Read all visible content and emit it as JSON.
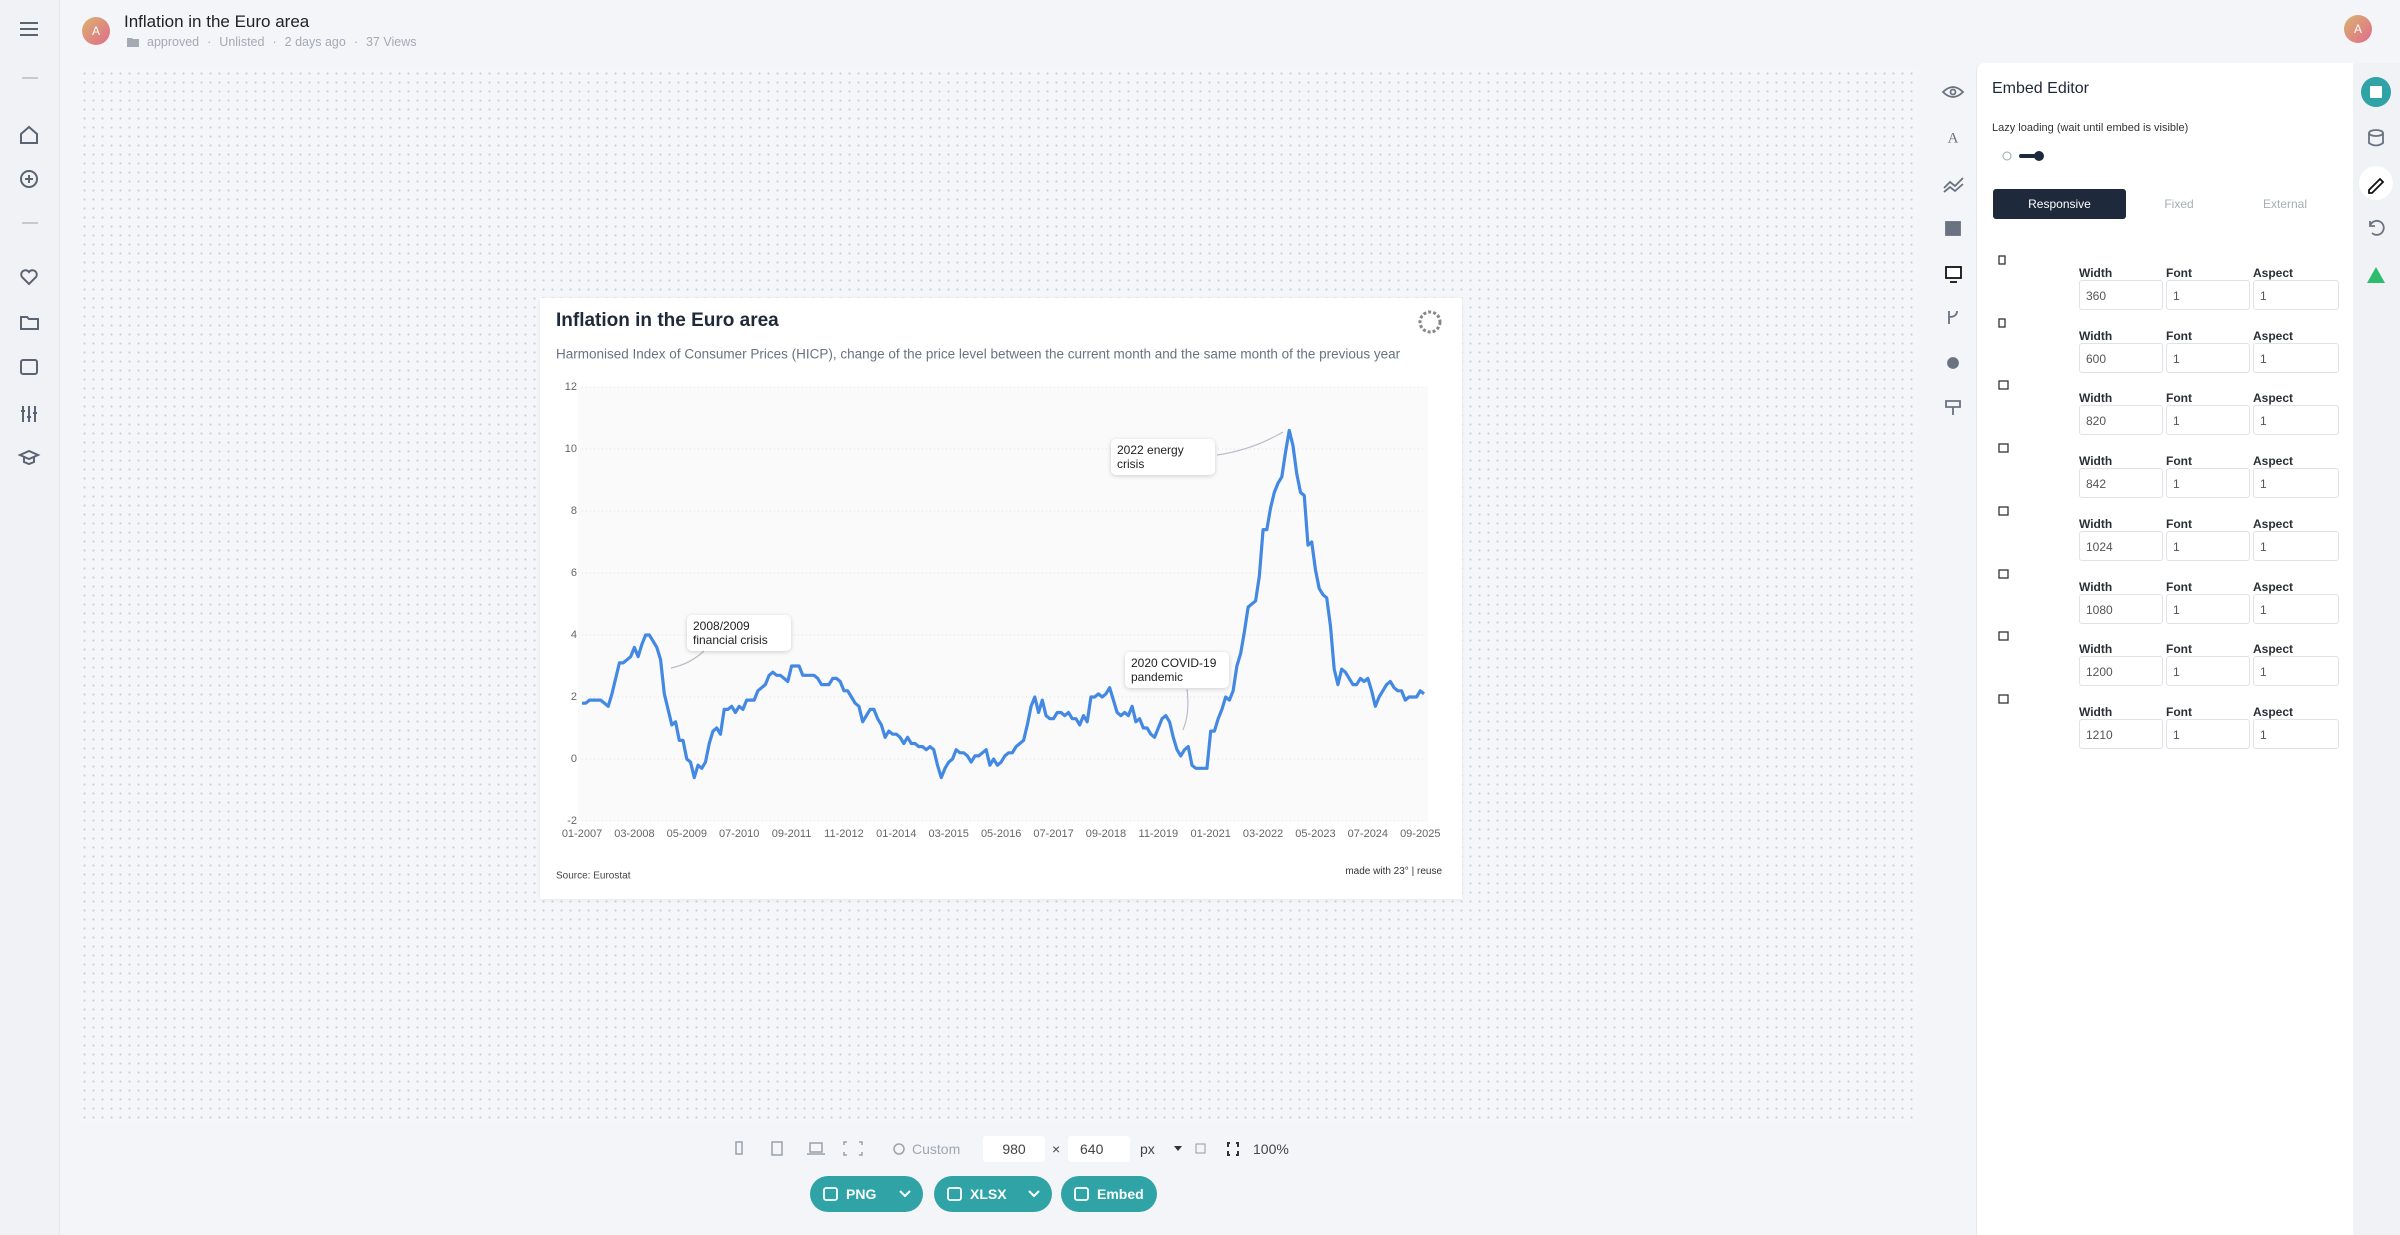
{
  "header": {
    "title": "Inflation in the Euro area",
    "status": "approved",
    "visibility": "Unlisted",
    "age": "2 days ago",
    "views": "37 Views",
    "avatar": "A"
  },
  "chart_data": {
    "type": "line",
    "title": "Inflation in the Euro area",
    "subtitle": "Harmonised Index of Consumer Prices (HICP), change of the price level between the current month and the same month of the previous year",
    "categories": [
      "01-2007",
      "02-2007",
      "03-2007",
      "04-2007",
      "05-2007",
      "06-2007",
      "07-2007",
      "08-2007",
      "09-2007",
      "10-2007",
      "11-2007",
      "12-2007",
      "01-2008",
      "02-2008",
      "03-2008",
      "04-2008",
      "05-2008",
      "06-2008",
      "07-2008",
      "08-2008",
      "09-2008",
      "10-2008",
      "11-2008",
      "12-2008",
      "01-2009",
      "02-2009",
      "03-2009",
      "04-2009",
      "05-2009",
      "06-2009",
      "07-2009",
      "08-2009",
      "09-2009",
      "10-2009",
      "11-2009",
      "12-2009",
      "01-2010",
      "02-2010",
      "03-2010",
      "04-2010",
      "05-2010",
      "06-2010",
      "07-2010",
      "08-2010",
      "09-2010",
      "10-2010",
      "11-2010",
      "12-2010",
      "01-2011",
      "02-2011",
      "03-2011",
      "04-2011",
      "05-2011",
      "06-2011",
      "07-2011",
      "08-2011",
      "09-2011",
      "10-2011",
      "11-2011",
      "12-2011",
      "01-2012",
      "02-2012",
      "03-2012",
      "04-2012",
      "05-2012",
      "06-2012",
      "07-2012",
      "08-2012",
      "09-2012",
      "10-2012",
      "11-2012",
      "12-2012",
      "01-2013",
      "02-2013",
      "03-2013",
      "04-2013",
      "05-2013",
      "06-2013",
      "07-2013",
      "08-2013",
      "09-2013",
      "10-2013",
      "11-2013",
      "12-2013",
      "01-2014",
      "02-2014",
      "03-2014",
      "04-2014",
      "05-2014",
      "06-2014",
      "07-2014",
      "08-2014",
      "09-2014",
      "10-2014",
      "11-2014",
      "12-2014",
      "01-2015",
      "02-2015",
      "03-2015",
      "04-2015",
      "05-2015",
      "06-2015",
      "07-2015",
      "08-2015",
      "09-2015",
      "10-2015",
      "11-2015",
      "12-2015",
      "01-2016",
      "02-2016",
      "03-2016",
      "04-2016",
      "05-2016",
      "06-2016",
      "07-2016",
      "08-2016",
      "09-2016",
      "10-2016",
      "11-2016",
      "12-2016",
      "01-2017",
      "02-2017",
      "03-2017",
      "04-2017",
      "05-2017",
      "06-2017",
      "07-2017",
      "08-2017",
      "09-2017",
      "10-2017",
      "11-2017",
      "12-2017",
      "01-2018",
      "02-2018",
      "03-2018",
      "04-2018",
      "05-2018",
      "06-2018",
      "07-2018",
      "08-2018",
      "09-2018",
      "10-2018",
      "11-2018",
      "12-2018",
      "01-2019",
      "02-2019",
      "03-2019",
      "04-2019",
      "05-2019",
      "06-2019",
      "07-2019",
      "08-2019",
      "09-2019",
      "10-2019",
      "11-2019",
      "12-2019",
      "01-2020",
      "02-2020",
      "03-2020",
      "04-2020",
      "05-2020",
      "06-2020",
      "07-2020",
      "08-2020",
      "09-2020",
      "10-2020",
      "11-2020",
      "12-2020",
      "01-2021",
      "02-2021",
      "03-2021",
      "04-2021",
      "05-2021",
      "06-2021",
      "07-2021",
      "08-2021",
      "09-2021",
      "10-2021",
      "11-2021",
      "12-2021",
      "01-2022",
      "02-2022",
      "03-2022",
      "04-2022",
      "05-2022",
      "06-2022",
      "07-2022",
      "08-2022",
      "09-2022",
      "10-2022",
      "11-2022",
      "12-2022",
      "01-2023",
      "02-2023",
      "03-2023",
      "04-2023",
      "05-2023",
      "06-2023",
      "07-2023",
      "08-2023",
      "09-2023",
      "10-2023",
      "11-2023",
      "12-2023",
      "01-2024",
      "02-2024",
      "03-2024",
      "04-2024",
      "05-2024",
      "06-2024",
      "07-2024",
      "08-2024",
      "09-2024",
      "10-2024",
      "11-2024",
      "12-2024",
      "01-2025",
      "02-2025",
      "03-2025",
      "04-2025",
      "05-2025",
      "06-2025",
      "07-2025",
      "08-2025",
      "09-2025",
      "10-2025"
    ],
    "values": [
      1.8,
      1.8,
      1.9,
      1.9,
      1.9,
      1.9,
      1.8,
      1.7,
      2.1,
      2.6,
      3.1,
      3.1,
      3.2,
      3.3,
      3.6,
      3.3,
      3.7,
      4.0,
      4.0,
      3.8,
      3.6,
      3.2,
      2.1,
      1.6,
      1.1,
      1.2,
      0.6,
      0.6,
      0.0,
      -0.1,
      -0.6,
      -0.2,
      -0.3,
      -0.1,
      0.5,
      0.9,
      1.0,
      0.8,
      1.6,
      1.6,
      1.7,
      1.5,
      1.7,
      1.6,
      1.9,
      1.9,
      1.9,
      2.2,
      2.3,
      2.4,
      2.7,
      2.8,
      2.7,
      2.7,
      2.6,
      2.5,
      3.0,
      3.0,
      3.0,
      2.7,
      2.7,
      2.7,
      2.7,
      2.6,
      2.4,
      2.4,
      2.4,
      2.6,
      2.6,
      2.5,
      2.2,
      2.2,
      2.0,
      1.8,
      1.7,
      1.2,
      1.4,
      1.6,
      1.6,
      1.3,
      1.1,
      0.7,
      0.9,
      0.8,
      0.8,
      0.7,
      0.5,
      0.7,
      0.5,
      0.5,
      0.4,
      0.4,
      0.3,
      0.4,
      0.3,
      -0.2,
      -0.6,
      -0.3,
      -0.1,
      0.0,
      0.3,
      0.2,
      0.2,
      0.1,
      -0.1,
      0.1,
      0.1,
      0.2,
      0.3,
      -0.2,
      0.0,
      -0.2,
      -0.1,
      0.1,
      0.2,
      0.2,
      0.4,
      0.5,
      0.6,
      1.1,
      1.7,
      2.0,
      1.5,
      1.9,
      1.4,
      1.3,
      1.3,
      1.5,
      1.5,
      1.4,
      1.5,
      1.3,
      1.3,
      1.1,
      1.4,
      1.2,
      2.0,
      2.0,
      2.1,
      2.0,
      2.1,
      2.3,
      1.9,
      1.5,
      1.4,
      1.5,
      1.4,
      1.7,
      1.2,
      1.3,
      1.0,
      1.0,
      0.8,
      0.7,
      1.0,
      1.3,
      1.4,
      1.2,
      0.7,
      0.3,
      0.1,
      0.3,
      0.4,
      -0.2,
      -0.3,
      -0.3,
      -0.3,
      -0.3,
      0.9,
      0.9,
      1.3,
      1.6,
      2.0,
      1.9,
      2.2,
      3.0,
      3.4,
      4.1,
      4.9,
      5.0,
      5.1,
      5.9,
      7.4,
      7.4,
      8.1,
      8.6,
      8.9,
      9.1,
      9.9,
      10.6,
      10.1,
      9.2,
      8.6,
      8.5,
      6.9,
      7.0,
      6.1,
      5.5,
      5.3,
      5.2,
      4.3,
      2.9,
      2.4,
      2.9,
      2.8,
      2.6,
      2.4,
      2.4,
      2.6,
      2.5,
      2.6,
      2.2,
      1.7,
      2.0,
      2.2,
      2.4,
      2.5,
      2.3,
      2.2,
      2.2,
      1.9,
      2.0,
      2.0,
      2.0,
      2.2,
      2.1
    ],
    "color": "#4389e3",
    "ylim": [
      -2,
      12
    ],
    "yticks": [
      -2,
      0,
      2,
      4,
      6,
      8,
      10,
      12
    ],
    "grid": true,
    "annotations": [
      {
        "text": "2008/2009 financial crisis"
      },
      {
        "text": "2022 energy crisis"
      },
      {
        "text": "2020 COVID-19 pandemic"
      }
    ],
    "source": "Source: Eurostat",
    "credit": "made with 23°",
    "separator": "|",
    "reuse": "reuse"
  },
  "embed_editor": {
    "title": "Embed Editor",
    "lazy_loading": "Lazy loading (wait until embed is visible)",
    "tabs": [
      "Responsive",
      "Fixed",
      "External"
    ],
    "columns": [
      "Width",
      "Font scale",
      "Aspect ratio"
    ],
    "rows": [
      [
        360,
        1,
        1
      ],
      [
        600,
        1,
        1
      ],
      [
        820,
        1,
        1
      ],
      [
        842,
        1,
        1
      ],
      [
        1024,
        1,
        1
      ],
      [
        1080,
        1,
        1
      ],
      [
        1200,
        1,
        1
      ],
      [
        1210,
        1,
        1
      ]
    ]
  },
  "toolbar": {
    "preset": "Custom",
    "width": 980,
    "times": "×",
    "height": 640,
    "unit": "px",
    "zoom": "100%"
  },
  "export_buttons": [
    "PNG",
    "XLSX",
    "Embed"
  ]
}
